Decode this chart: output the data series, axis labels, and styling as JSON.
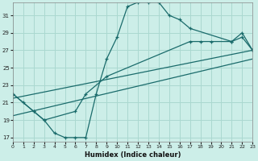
{
  "xlabel": "Humidex (Indice chaleur)",
  "bg_color": "#cceee8",
  "grid_color": "#aad8d0",
  "line_color": "#1a6b6b",
  "xlim": [
    0,
    23
  ],
  "ylim": [
    16.5,
    32.5
  ],
  "xticks": [
    0,
    1,
    2,
    3,
    4,
    5,
    6,
    7,
    8,
    9,
    10,
    11,
    12,
    13,
    14,
    15,
    16,
    17,
    18,
    19,
    20,
    21,
    22,
    23
  ],
  "yticks": [
    17,
    19,
    21,
    23,
    25,
    27,
    29,
    31
  ],
  "curve1_x": [
    0,
    1,
    2,
    3,
    4,
    5,
    6,
    7,
    8,
    9,
    10,
    11,
    12,
    13,
    14,
    15,
    16,
    17,
    21,
    22,
    23
  ],
  "curve1_y": [
    22,
    21,
    20,
    19,
    17.5,
    17,
    17,
    17,
    22,
    26,
    28.5,
    32,
    32.5,
    32.5,
    32.5,
    31,
    30.5,
    29.5,
    28,
    29,
    27
  ],
  "curve2_x": [
    0,
    2,
    3,
    6,
    7,
    9,
    17,
    18,
    19,
    21,
    22,
    23
  ],
  "curve2_y": [
    22,
    20,
    19,
    20,
    22,
    24,
    28,
    28,
    28,
    28,
    28.5,
    27
  ],
  "line3_x": [
    0,
    23
  ],
  "line3_y": [
    19.5,
    26.0
  ],
  "line4_x": [
    0,
    23
  ],
  "line4_y": [
    21.5,
    27.0
  ]
}
